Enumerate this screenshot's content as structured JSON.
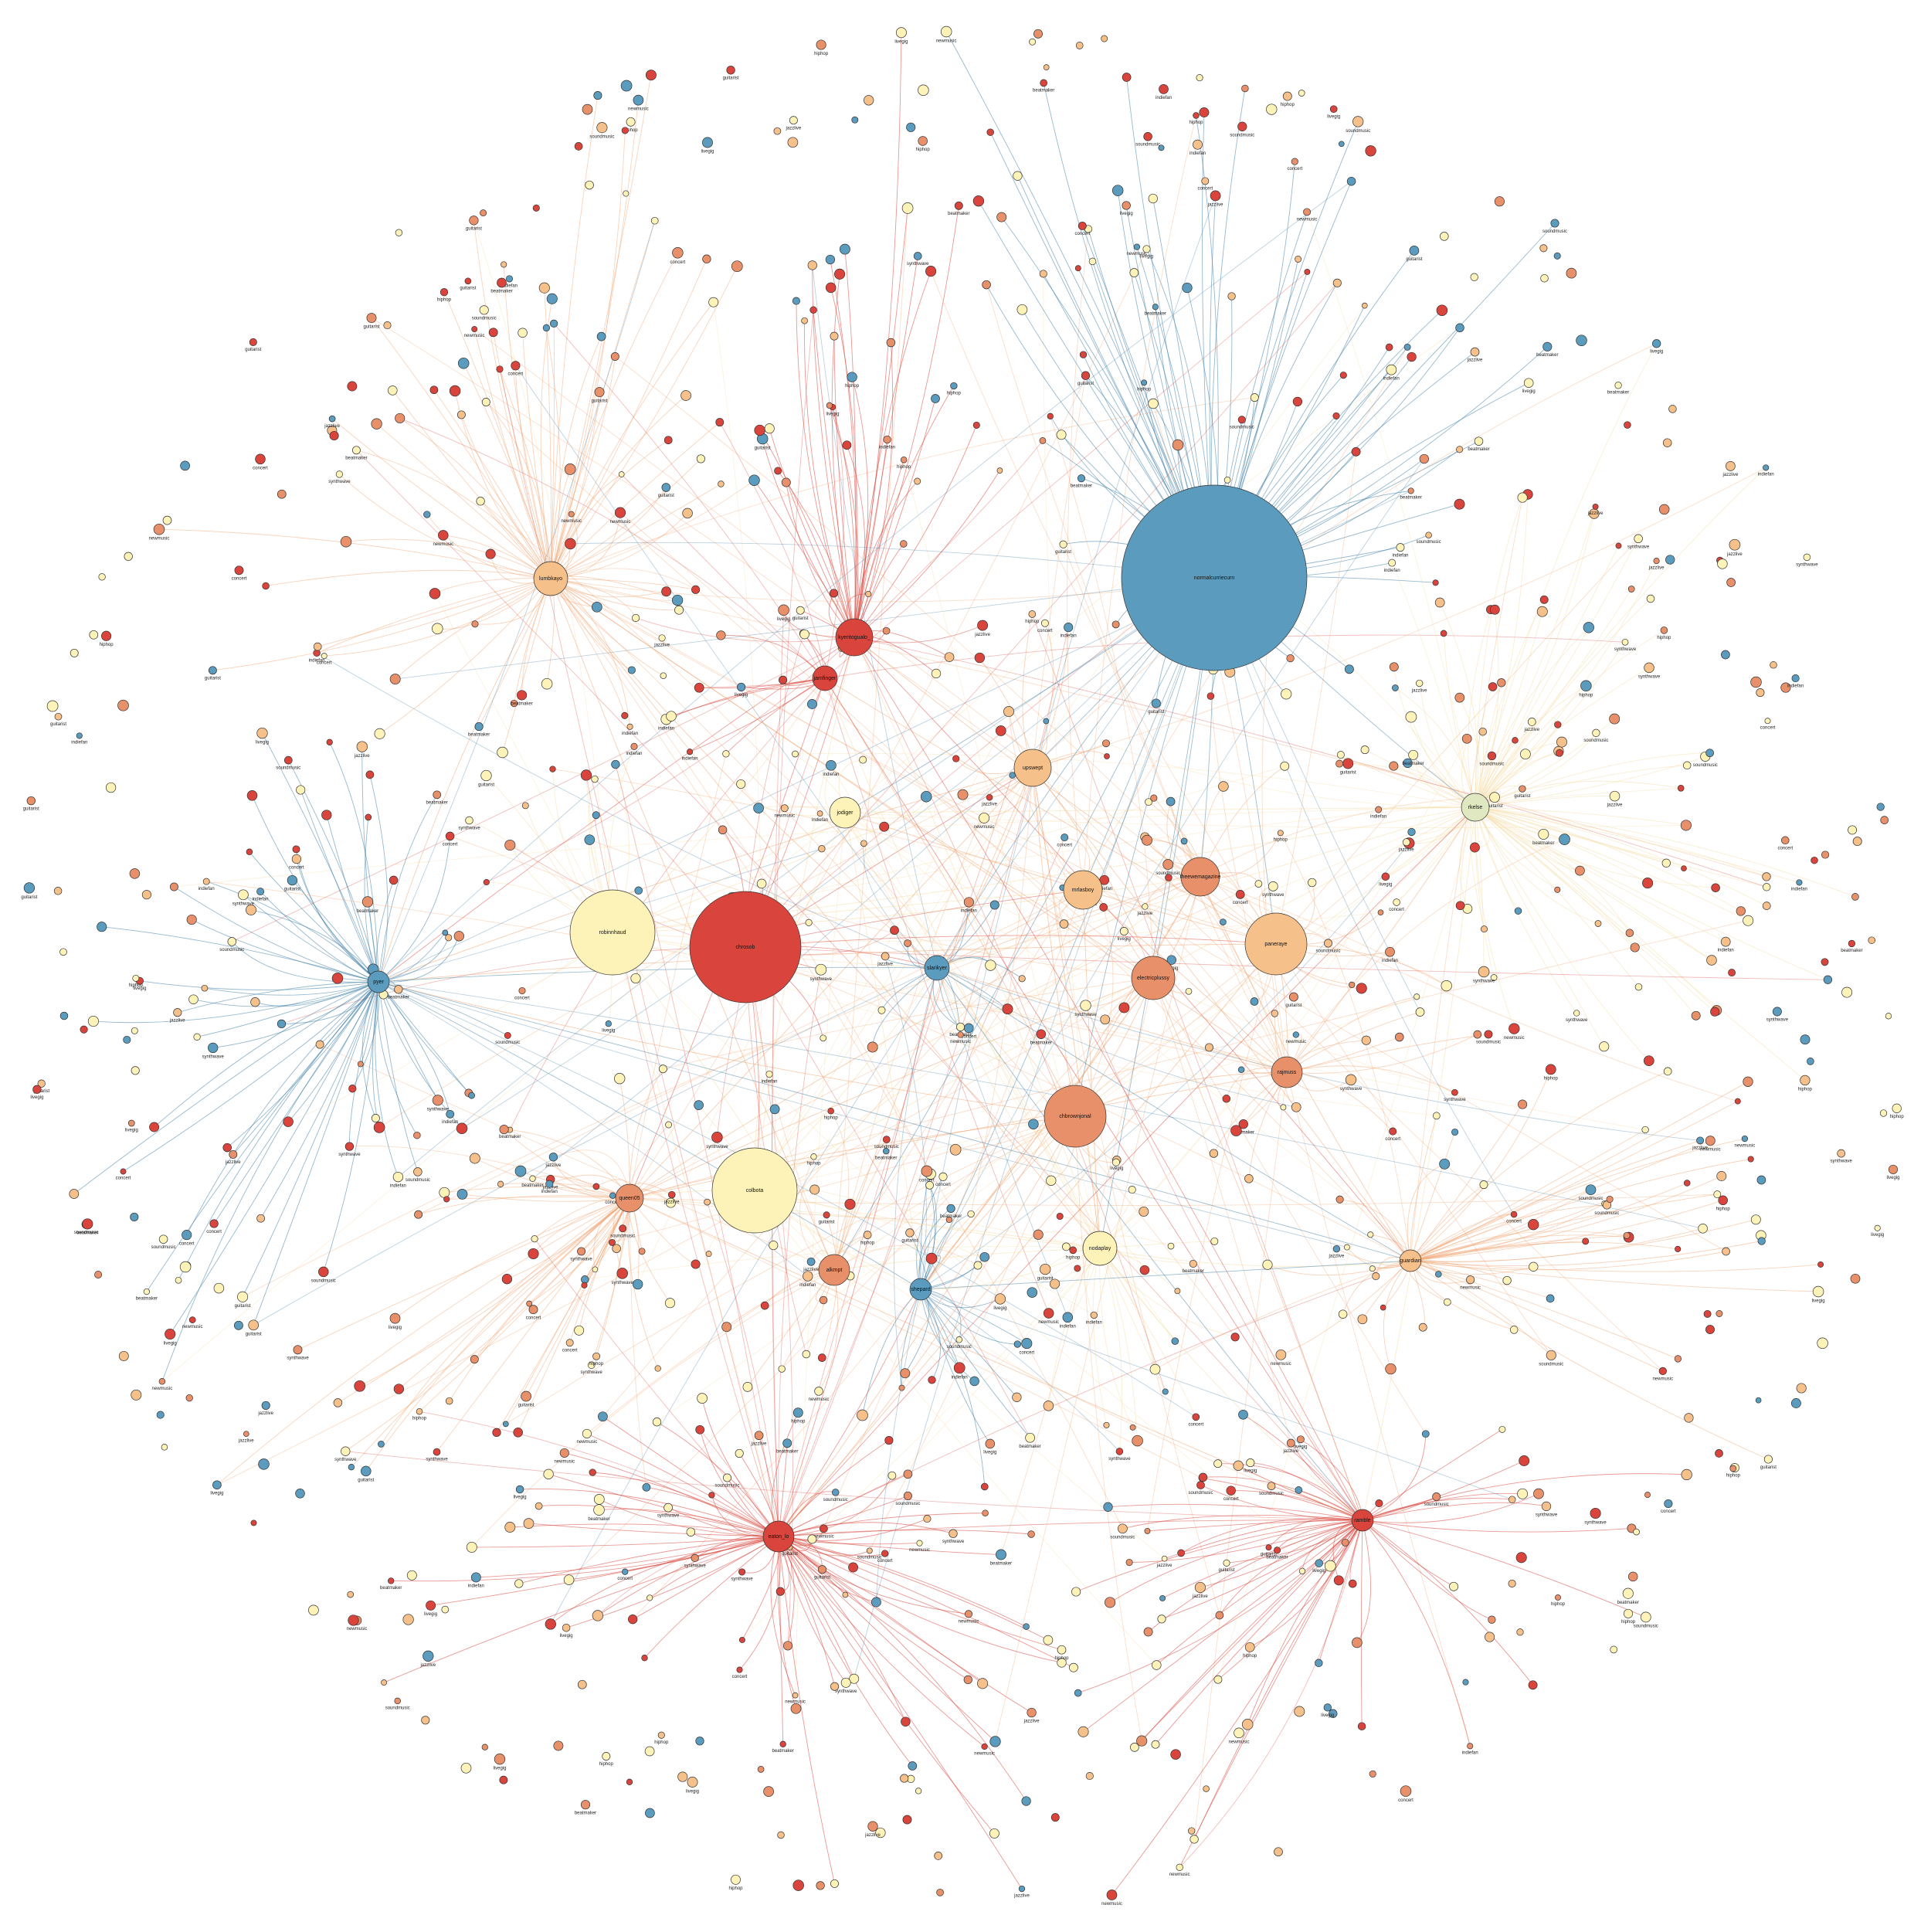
{
  "colors": {
    "blue": "#5b9bbd",
    "red": "#d9453c",
    "orange": "#e8906a",
    "peach": "#f5c08a",
    "cream": "#fdf3b8",
    "palegreen": "#dfe8c0",
    "edge_red": "#d9453c",
    "edge_blue": "#3f7fa8",
    "edge_orange": "#f0a06a",
    "edge_cream": "#f5d9a0"
  },
  "hubs": [
    {
      "label": "normalcurriecurn",
      "group": "blue",
      "size": 10
    },
    {
      "label": "chrosob",
      "group": "red",
      "size": 8
    },
    {
      "label": "robinnhaud",
      "group": "cream",
      "size": 6.5
    },
    {
      "label": "colbota",
      "group": "cream",
      "size": 6.5
    },
    {
      "label": "chbrownjonal",
      "group": "orange",
      "size": 5
    },
    {
      "label": "paneraye",
      "group": "peach",
      "size": 5
    },
    {
      "label": "electricplussy",
      "group": "orange",
      "size": 3.5
    },
    {
      "label": "theewemagazine",
      "group": "orange",
      "size": 3.2
    },
    {
      "label": "mrlasboy",
      "group": "peach",
      "size": 3.2
    },
    {
      "label": "lumbkayo",
      "group": "peach",
      "size": 3
    },
    {
      "label": "upswept",
      "group": "peach",
      "size": 3
    },
    {
      "label": "nodaplay",
      "group": "cream",
      "size": 3
    },
    {
      "label": "rajmuss",
      "group": "orange",
      "size": 3
    },
    {
      "label": "jodiger",
      "group": "cream",
      "size": 3
    },
    {
      "label": "kyeritogualo_",
      "group": "red",
      "size": 3
    },
    {
      "label": "eaton_lo",
      "group": "red",
      "size": 3
    },
    {
      "label": "rkelse",
      "group": "palegreen",
      "size": 3
    },
    {
      "label": "pyer",
      "group": "blue",
      "size": 2.5
    },
    {
      "label": "jamfinger",
      "group": "red",
      "size": 2.5
    },
    {
      "label": "slarikyer",
      "group": "blue",
      "size": 2.5
    },
    {
      "label": "queen05",
      "group": "orange",
      "size": 3
    },
    {
      "label": "alkmpt",
      "group": "orange",
      "size": 3
    },
    {
      "label": "shepard",
      "group": "blue",
      "size": 2.5
    },
    {
      "label": "guardian",
      "group": "peach",
      "size": 2.5
    },
    {
      "label": "ramble",
      "group": "red",
      "size": 2.5
    }
  ],
  "minor_labels": [
    "soundmusic",
    "billboard",
    "musicnews",
    "indiefan",
    "popculture",
    "rockfan",
    "jazzlive",
    "djmix",
    "vinylrecord",
    "beatmaker",
    "songwriter",
    "tourlife",
    "synthwave",
    "basshead",
    "radioplay",
    "livegig",
    "mixtape",
    "studio",
    "guitarist",
    "drummer",
    "popstar",
    "hiphop",
    "remix",
    "albumdrop",
    "newmusic",
    "playlist",
    "festival",
    "concert",
    "edm",
    "classical"
  ]
}
